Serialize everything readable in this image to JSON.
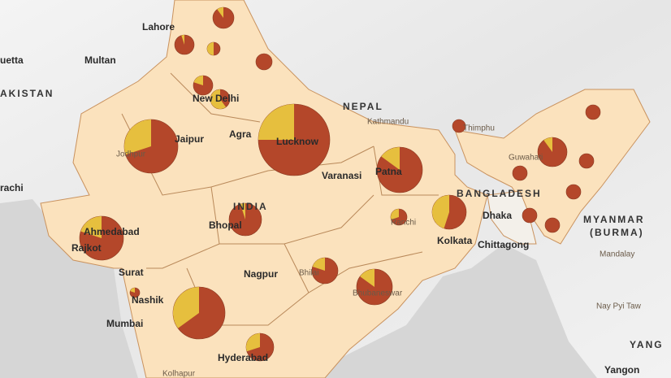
{
  "places": [
    "Lahore",
    "Multan",
    "uetta",
    "AKISTAN",
    "New Delhi",
    "Jaipur",
    "Jodhpur",
    "Agra",
    "Lucknow",
    "NEPAL",
    "Kathmandu",
    "Thimphu",
    "Guwahati",
    "BANGLADESH",
    "Dhaka",
    "Chittagong",
    "MYANMAR",
    "(BURMA)",
    "Mandalay",
    "Nay Pyi Taw",
    "Yangon",
    "Patna",
    "Varanasi",
    "INDIA",
    "Bhopal",
    "Ranchi",
    "Kolkata",
    "Ahmedabad",
    "Rajkot",
    "Surat",
    "Nagpur",
    "Bhilai",
    "Bhubaneswar",
    "Nashik",
    "Mumbai",
    "Hyderabad",
    "Kolhapur",
    "rachi",
    "YANG"
  ],
  "pie_shares": [
    5,
    50,
    10,
    0,
    20,
    60,
    30,
    25,
    15,
    45,
    30,
    20,
    5,
    20,
    15,
    20,
    35,
    30,
    0,
    0,
    10,
    0,
    0,
    0,
    0,
    0
  ],
  "pie_colors": {
    "share": "#e6bf3e",
    "rest": "#b4472a"
  }
}
